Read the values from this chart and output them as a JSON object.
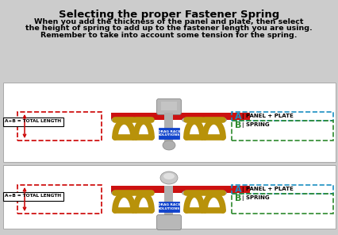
{
  "bg_color": "#cccccc",
  "panel_bg": "#ffffff",
  "title": "Selecting the proper Fastener Spring",
  "line1": "When you add the thickness of the panel and plate, then select",
  "line2": "the height of spring to add up to the fastener length you are using.",
  "line3": "Remember to take into account some tension for the spring.",
  "label_A": "A",
  "label_B": "B",
  "text_A": "PANEL + PLATE",
  "text_B": "SPRING",
  "total_label": "A+B = TOTAL LENGTH",
  "color_A_box": "#1a8fc1",
  "color_B_box": "#2d8a2d",
  "color_red": "#cc0000",
  "panel_color": "#cc1111",
  "spring_color": "#b8920a",
  "fastener_color": "#a8a8a8",
  "title_fontsize": 9.5,
  "body_fontsize": 6.8,
  "line3_fontsize": 6.8
}
